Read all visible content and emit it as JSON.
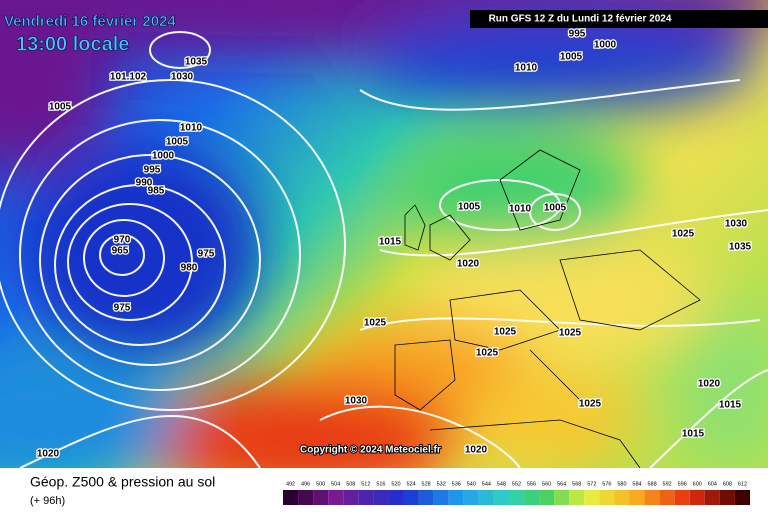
{
  "header": {
    "date": "Vendredi 16 février 2024",
    "time": "13:00 locale",
    "run": "Run GFS 12 Z du Lundi 12 février 2024",
    "copyright": "Copyright © 2024 Meteociel.fr"
  },
  "isobar_labels": [
    "1035",
    "1010",
    "1005",
    "1000",
    "995",
    "101.102",
    "1030",
    "1005",
    "1010",
    "1005",
    "1000",
    "995",
    "990",
    "985",
    "970",
    "965",
    "975",
    "980",
    "975",
    "1005",
    "1010",
    "1005",
    "1015",
    "1020",
    "1025",
    "1030",
    "1035",
    "1025",
    "1025",
    "1025",
    "1025",
    "1020",
    "1025",
    "1015",
    "1015",
    "1030",
    "1020",
    "1020"
  ],
  "legend": {
    "title": "Géop. Z500 & pression au sol",
    "lead": "(+ 96h)",
    "levels": [
      "492",
      "496",
      "500",
      "504",
      "508",
      "512",
      "516",
      "520",
      "524",
      "528",
      "532",
      "536",
      "540",
      "544",
      "548",
      "552",
      "556",
      "560",
      "564",
      "568",
      "572",
      "576",
      "580",
      "584",
      "588",
      "592",
      "596",
      "600",
      "604",
      "608",
      "612"
    ]
  }
}
